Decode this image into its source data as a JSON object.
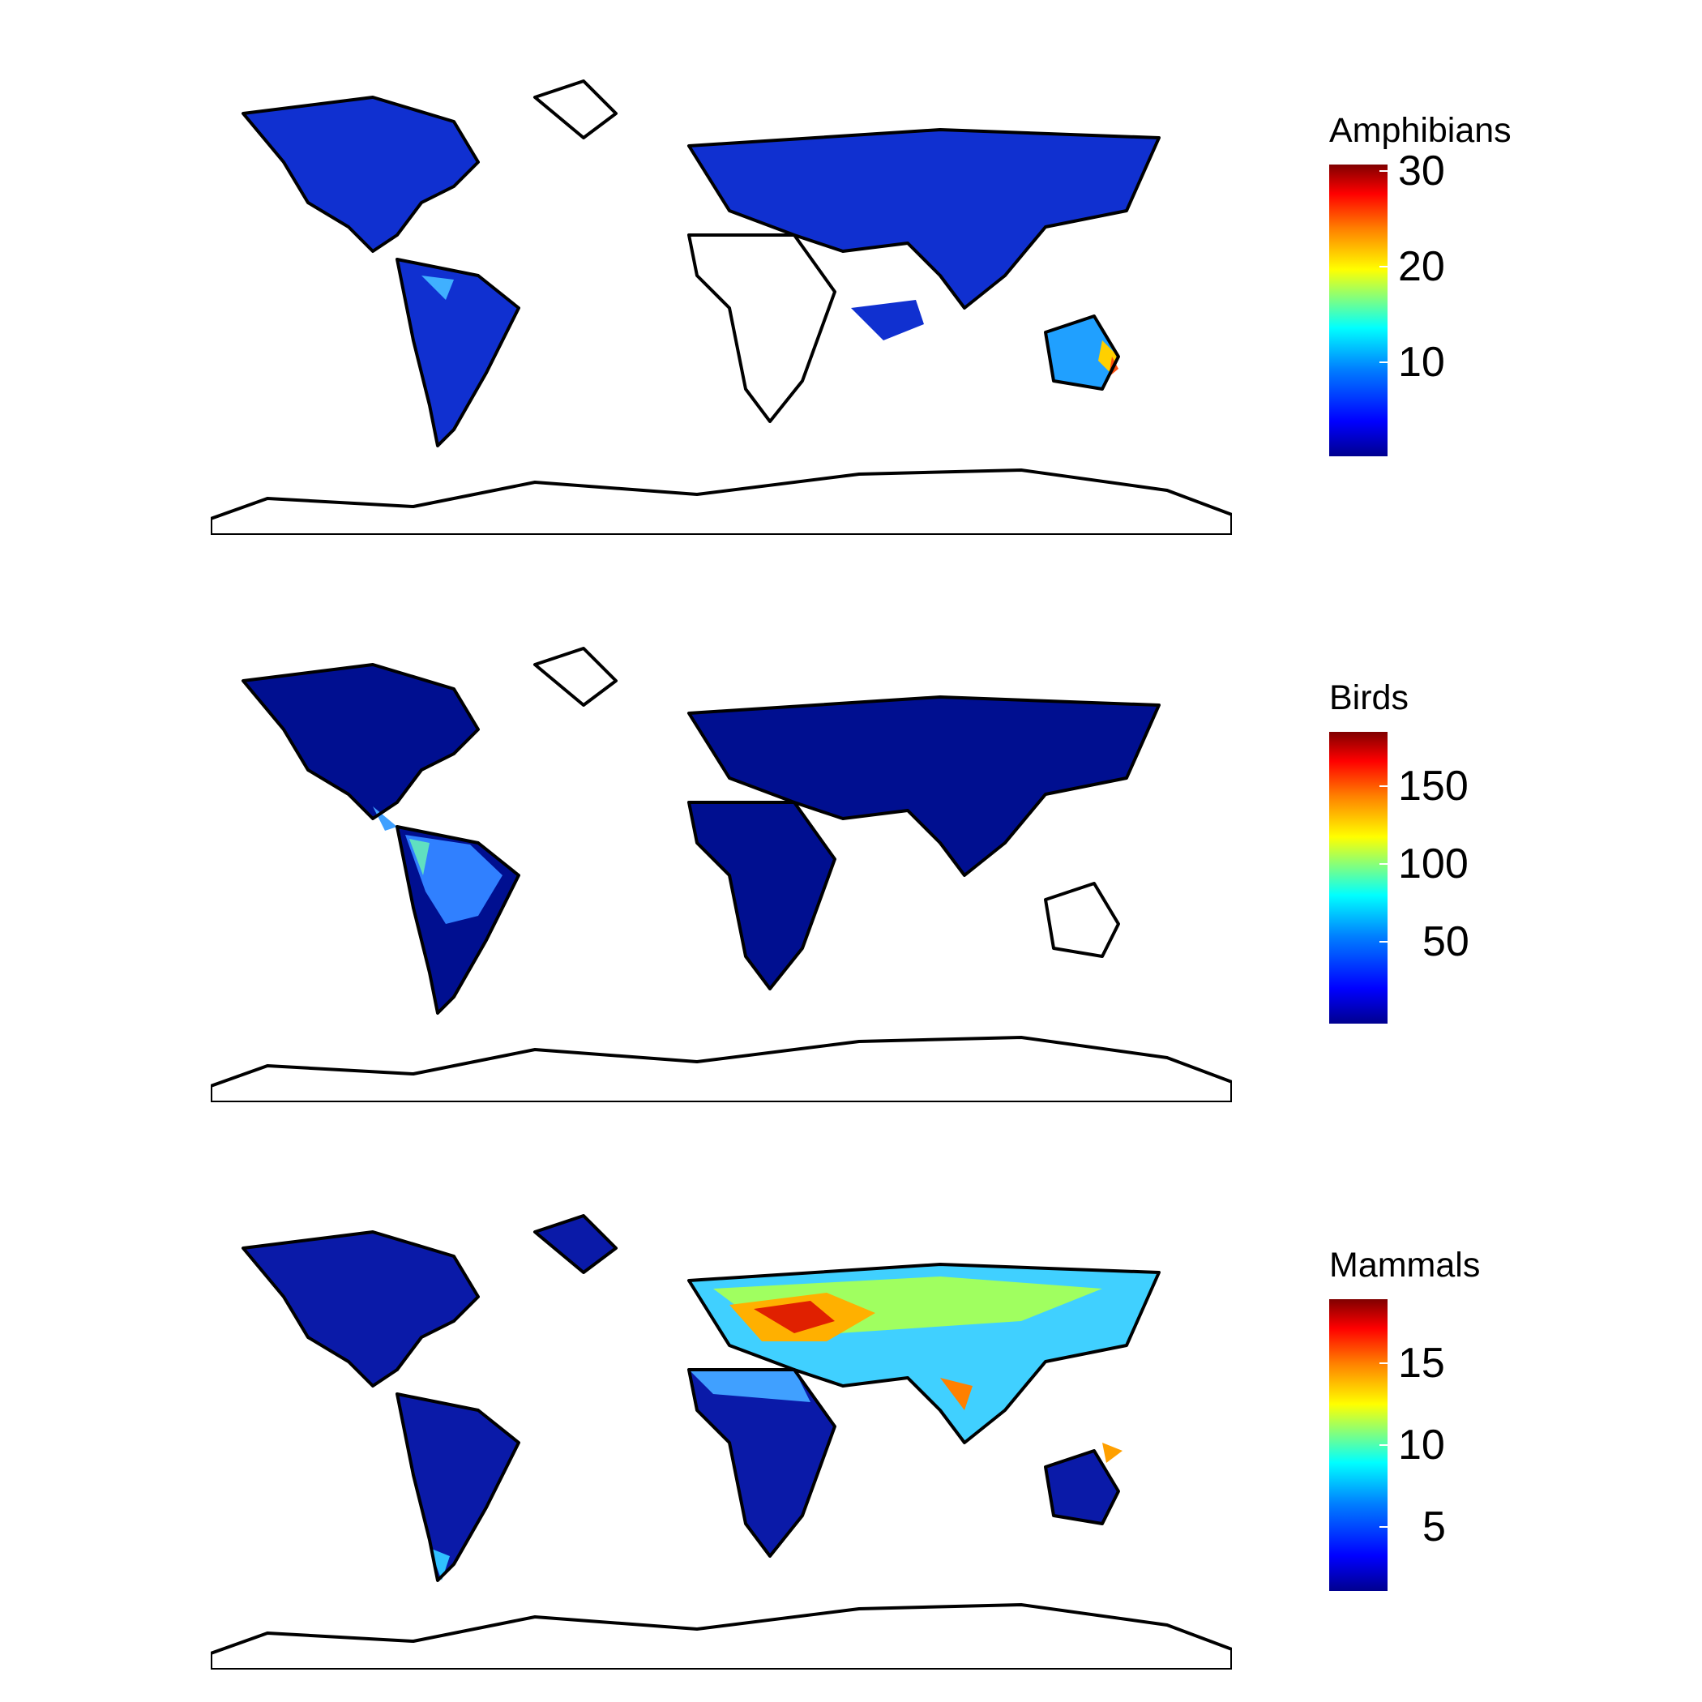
{
  "panels": [
    {
      "legend_title": "Amphibians",
      "ticks": [
        "30",
        "20",
        "10"
      ],
      "colors": {
        "low": "#00008f",
        "mid": "#00ffff",
        "high": "#800000"
      }
    },
    {
      "legend_title": "Birds",
      "ticks": [
        "150",
        "100",
        "50"
      ],
      "colors": {
        "low": "#00008f",
        "mid": "#00ffff",
        "high": "#800000"
      }
    },
    {
      "legend_title": "Mammals",
      "ticks": [
        "15",
        "10",
        "5"
      ],
      "colors": {
        "low": "#00008f",
        "mid": "#00ffff",
        "high": "#800000"
      }
    }
  ]
}
